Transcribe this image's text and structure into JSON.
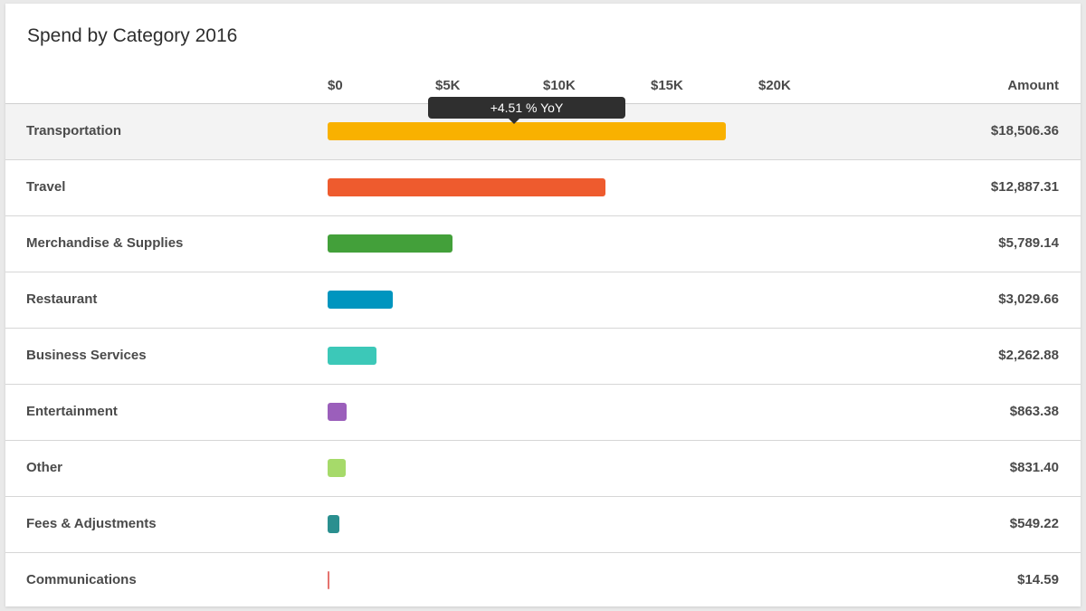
{
  "chart_data": {
    "type": "bar",
    "orientation": "horizontal",
    "title": "Spend by Category 2016",
    "value_header": "Amount",
    "xlim": [
      0,
      25000
    ],
    "ticks": [
      {
        "value": 0,
        "label": "$0"
      },
      {
        "value": 5000,
        "label": "$5K"
      },
      {
        "value": 10000,
        "label": "$10K"
      },
      {
        "value": 15000,
        "label": "$15K"
      },
      {
        "value": 20000,
        "label": "$20K"
      }
    ],
    "categories": [
      "Transportation",
      "Travel",
      "Merchandise & Supplies",
      "Restaurant",
      "Business Services",
      "Entertainment",
      "Other",
      "Fees & Adjustments",
      "Communications"
    ],
    "values": [
      18506.36,
      12887.31,
      5789.14,
      3029.66,
      2262.88,
      863.38,
      831.4,
      549.22,
      14.59
    ],
    "value_labels": [
      "$18,506.36",
      "$12,887.31",
      "$5,789.14",
      "$3,029.66",
      "$2,262.88",
      "$863.38",
      "$831.40",
      "$549.22",
      "$14.59"
    ],
    "colors": [
      "#f9b100",
      "#ee5b2e",
      "#43a03a",
      "#0095bf",
      "#3cc8b8",
      "#9b5fbb",
      "#a6da6a",
      "#2a8f8f",
      "#e5736e"
    ],
    "tooltip": {
      "category_index": 0,
      "text": "+4.51 % YoY"
    },
    "highlighted_index": 0
  }
}
